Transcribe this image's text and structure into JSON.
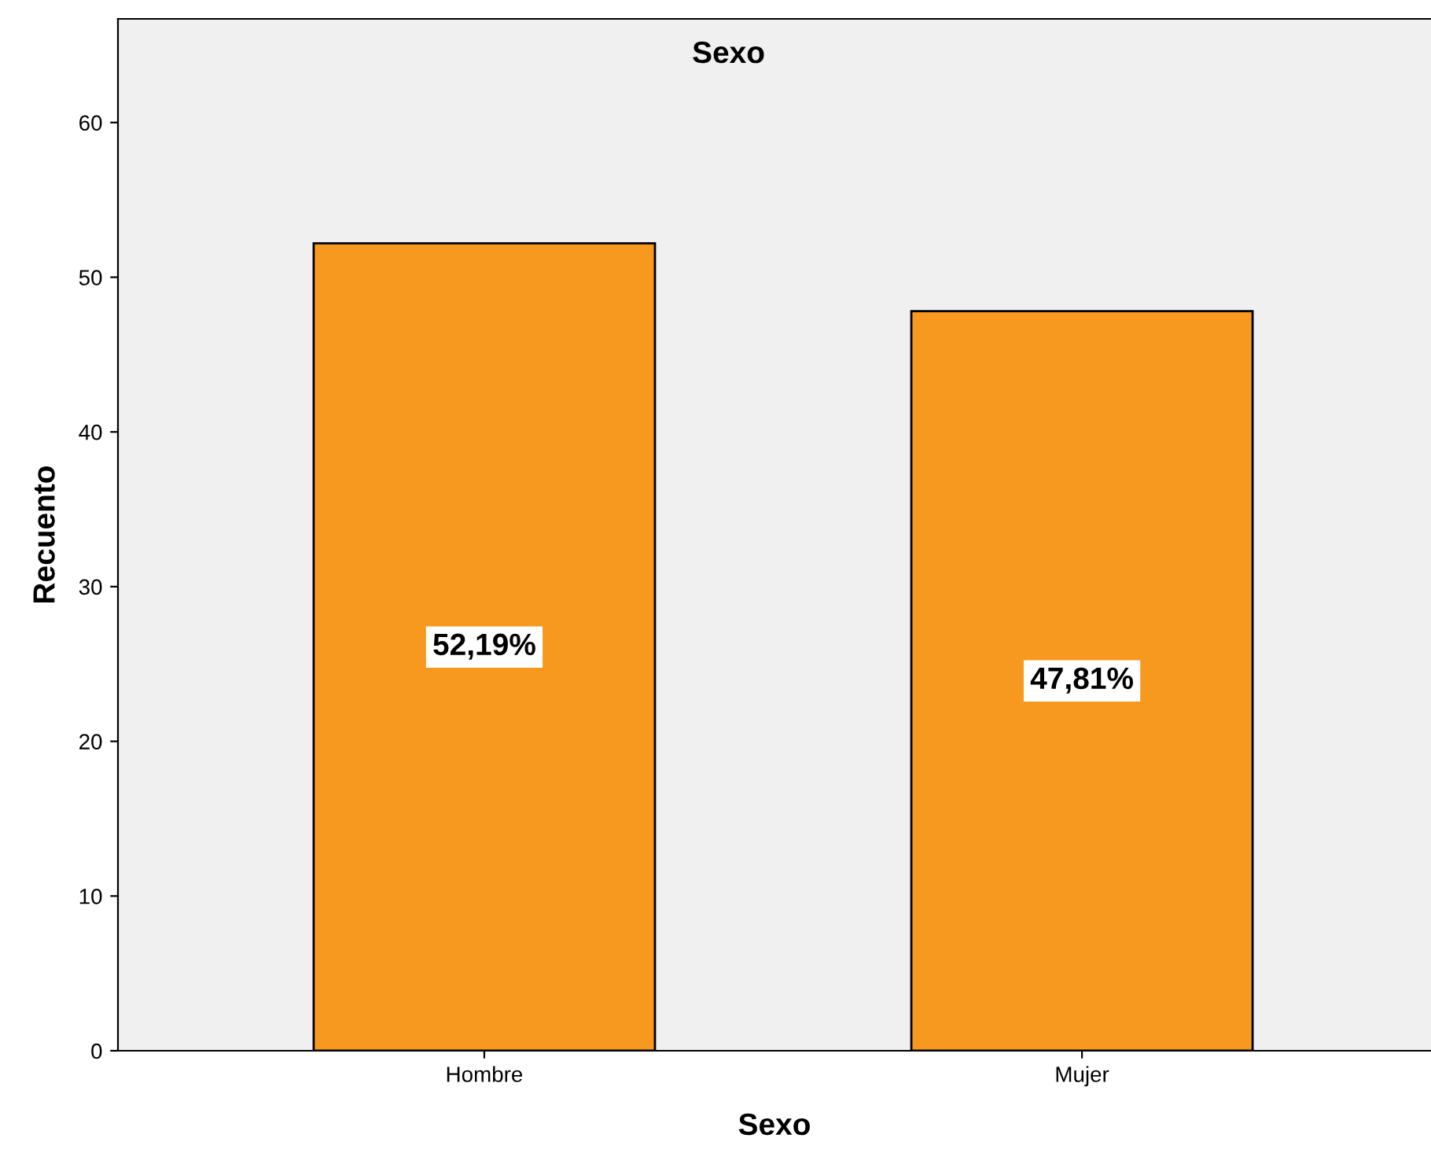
{
  "chart_data": {
    "type": "bar",
    "title": "Sexo",
    "xlabel": "Sexo",
    "ylabel": "Recuento",
    "categories": [
      "Hombre",
      "Mujer"
    ],
    "values": [
      52.19,
      47.81
    ],
    "value_labels": [
      "52,19%",
      "47,81%"
    ],
    "color": "#f7991e",
    "ylim": [
      0,
      66.7
    ],
    "yticks": [
      0,
      10,
      20,
      30,
      40,
      50,
      60
    ],
    "grid": false,
    "legend": false
  }
}
